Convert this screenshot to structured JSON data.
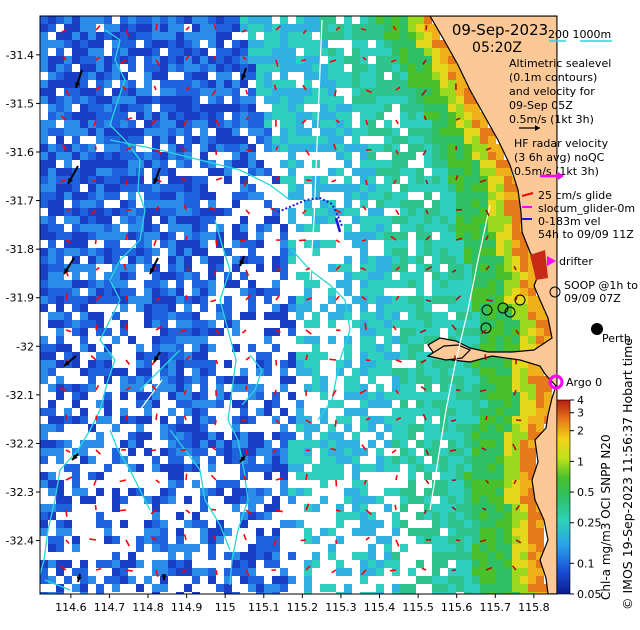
{
  "header": {
    "date": "09-Sep-2023",
    "time": "05:20Z",
    "depth_contour_label": "200  1000m"
  },
  "axes": {
    "lon_ticks": [
      "114.6",
      "114.7",
      "114.8",
      "114.9",
      "115",
      "115.1",
      "115.2",
      "115.3",
      "115.4",
      "115.5",
      "115.6",
      "115.7",
      "115.8"
    ],
    "lat_ticks": [
      "-31.4",
      "-31.5",
      "-31.6",
      "-31.7",
      "-31.8",
      "-31.9",
      "-32",
      "-32.1",
      "-32.2",
      "-32.3",
      "-32.4"
    ],
    "lon_range": [
      114.52,
      115.86
    ],
    "lat_range": [
      -32.51,
      -31.32
    ]
  },
  "legend": {
    "altimetric": [
      "Altimetric sealevel",
      "(0.1m contours)",
      "and velocity for",
      "09-Sep 05Z",
      "0.5m/s (1kt 3h)"
    ],
    "hf_radar": [
      "HF radar velocity",
      "(3 6h avg) noQC",
      "0.5m/s (1kt 3h)"
    ],
    "glider": [
      "25 cm/s glide",
      "slocum_glider-0m",
      "0-183m vel",
      "54h to 09/09 11Z"
    ],
    "drifter": "drifter",
    "soop": [
      "SOOP @1h to",
      "09/09 07Z"
    ],
    "perth": "Perth",
    "argo": "Argo 0"
  },
  "colorbar": {
    "title": "Chl-a mg/m3 OCI SNPP N20",
    "tick_labels": [
      "4",
      "3",
      "2",
      "1",
      "0.5",
      "0.25",
      "0.1",
      "0.05"
    ],
    "tick_values": [
      4,
      3,
      2,
      1,
      0.5,
      0.25,
      0.1,
      0.05
    ],
    "range": [
      0.05,
      4
    ],
    "scale": "log"
  },
  "credit": "© IMOS 19-Sep-2023 11:56:37 Hobart time",
  "colors": {
    "land": "#fbc896",
    "contour": "#26d6dc",
    "hf_arrow": "#ff0000",
    "glider": "#1a1ad0",
    "drifter": "#ff00ff",
    "argo": "#ff00ff"
  }
}
